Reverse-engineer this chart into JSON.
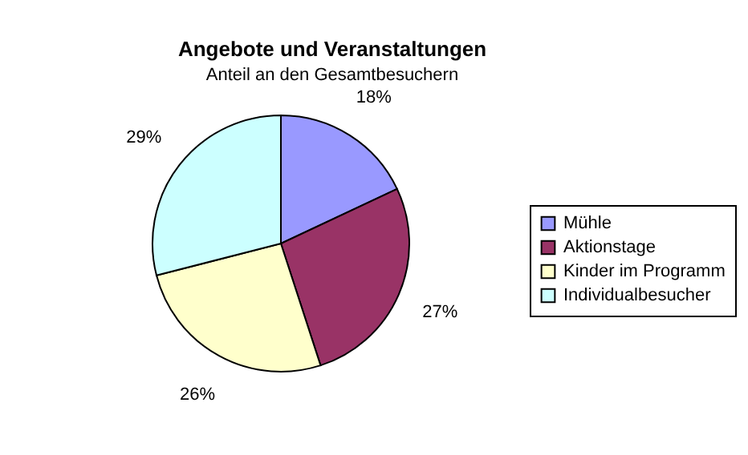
{
  "chart_data": {
    "type": "pie",
    "title": "Angebote und Veranstaltungen",
    "subtitle": "Anteil an den Gesamtbesuchern",
    "categories": [
      "Mühle",
      "Aktionstage",
      "Kinder im Programm",
      "Individualbesucher"
    ],
    "values": [
      18,
      27,
      26,
      29
    ],
    "colors": [
      "#9999ff",
      "#993366",
      "#ffffcc",
      "#ccffff"
    ],
    "value_labels": [
      "18%",
      "27%",
      "26%",
      "29%"
    ],
    "legend": "right"
  }
}
